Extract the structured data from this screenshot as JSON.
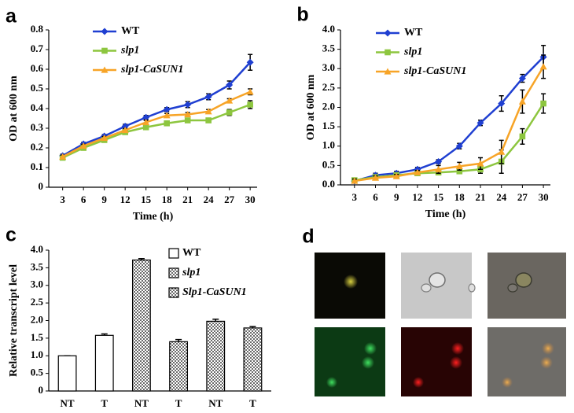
{
  "chart_data": [
    {
      "type": "line",
      "panel_label": "a",
      "x_label": "Time (h)",
      "y_label": "OD at 600 nm",
      "x": [
        3,
        6,
        9,
        12,
        15,
        18,
        21,
        24,
        27,
        30
      ],
      "xlim": [
        1,
        31
      ],
      "xticks": [
        3,
        6,
        9,
        12,
        15,
        18,
        21,
        24,
        27,
        30
      ],
      "ylim": [
        0,
        0.8
      ],
      "yticks": [
        0,
        0.1,
        0.2,
        0.3,
        0.4,
        0.5,
        0.6,
        0.7,
        0.8
      ],
      "series": [
        {
          "name": "WT",
          "color": "#1f3fd1",
          "marker": "diamond",
          "italic": false,
          "values": [
            0.16,
            0.22,
            0.26,
            0.31,
            0.355,
            0.395,
            0.42,
            0.46,
            0.52,
            0.635
          ],
          "errors": [
            0.008,
            0.008,
            0.008,
            0.01,
            0.01,
            0.01,
            0.015,
            0.015,
            0.02,
            0.04
          ]
        },
        {
          "name": "slp1",
          "color": "#8dc63f",
          "marker": "square",
          "italic": true,
          "values": [
            0.15,
            0.2,
            0.24,
            0.28,
            0.305,
            0.325,
            0.34,
            0.34,
            0.38,
            0.42
          ],
          "errors": [
            0.008,
            0.008,
            0.008,
            0.008,
            0.01,
            0.01,
            0.01,
            0.01,
            0.015,
            0.02
          ]
        },
        {
          "name": "slp1-CaSUN1",
          "color": "#f7a427",
          "marker": "triangle",
          "italic": true,
          "values": [
            0.155,
            0.21,
            0.25,
            0.29,
            0.33,
            0.365,
            0.37,
            0.385,
            0.44,
            0.485
          ],
          "errors": [
            0.008,
            0.008,
            0.008,
            0.008,
            0.01,
            0.01,
            0.01,
            0.01,
            0.01,
            0.015
          ]
        }
      ]
    },
    {
      "type": "line",
      "panel_label": "b",
      "x_label": "Time (h)",
      "y_label": "OD at 600 nm",
      "x": [
        3,
        6,
        9,
        12,
        15,
        18,
        21,
        24,
        27,
        30
      ],
      "xlim": [
        1,
        31
      ],
      "xticks": [
        3,
        6,
        9,
        12,
        15,
        18,
        21,
        24,
        27,
        30
      ],
      "ylim": [
        0,
        4
      ],
      "yticks": [
        {
          "value": 0,
          "label": "0.0"
        },
        0.5,
        {
          "value": 1,
          "label": "1.0"
        },
        1.5,
        {
          "value": 2,
          "label": "2.0"
        },
        2.5,
        {
          "value": 3,
          "label": "3.0"
        },
        3.5,
        {
          "value": 4,
          "label": "4.0"
        }
      ],
      "series": [
        {
          "name": "WT",
          "color": "#1f3fd1",
          "marker": "diamond",
          "italic": false,
          "values": [
            0.1,
            0.25,
            0.3,
            0.4,
            0.6,
            1.0,
            1.6,
            2.1,
            2.75,
            3.3
          ],
          "errors": [
            0.05,
            0.05,
            0.05,
            0.05,
            0.05,
            0.07,
            0.07,
            0.2,
            0.1,
            0.3
          ]
        },
        {
          "name": "slp1",
          "color": "#8dc63f",
          "marker": "square",
          "italic": true,
          "values": [
            0.12,
            0.2,
            0.25,
            0.3,
            0.32,
            0.35,
            0.4,
            0.6,
            1.25,
            2.1
          ],
          "errors": [
            0.05,
            0.05,
            0.05,
            0.05,
            0.05,
            0.05,
            0.1,
            0.3,
            0.2,
            0.25
          ]
        },
        {
          "name": "slp1-CaSUN1",
          "color": "#f7a427",
          "marker": "triangle",
          "italic": true,
          "values": [
            0.1,
            0.18,
            0.22,
            0.32,
            0.4,
            0.48,
            0.55,
            0.85,
            2.15,
            3.05
          ],
          "errors": [
            0.05,
            0.05,
            0.05,
            0.05,
            0.1,
            0.1,
            0.15,
            0.3,
            0.3,
            0.3
          ]
        }
      ]
    },
    {
      "type": "bar",
      "panel_label": "c",
      "y_label": "Relative transcript level",
      "categories": [
        "NT",
        "T",
        "NT",
        "T",
        "NT",
        "T"
      ],
      "ylim": [
        0,
        4
      ],
      "yticks": [
        0,
        0.5,
        {
          "value": 1,
          "label": "1.0"
        },
        1.5,
        {
          "value": 2,
          "label": "2.0"
        },
        2.5,
        {
          "value": 3,
          "label": "3.0"
        },
        3.5,
        {
          "value": 4,
          "label": "4.0"
        }
      ],
      "series": [
        {
          "name": "WT",
          "color": "#000000",
          "hatch": "none",
          "italic": false,
          "values": [
            1.0,
            1.58,
            null,
            null,
            null,
            null
          ],
          "errors": [
            0,
            0.04,
            null,
            null,
            null,
            null
          ]
        },
        {
          "name": "slp1",
          "color": "#000000",
          "hatch": "dots",
          "italic": true,
          "values": [
            null,
            null,
            3.72,
            1.4,
            null,
            null
          ],
          "errors": [
            null,
            null,
            0.04,
            0.06,
            null,
            null
          ]
        },
        {
          "name": "Slp1-CaSUN1",
          "color": "#000000",
          "hatch": "dots",
          "italic": true,
          "values": [
            null,
            null,
            null,
            null,
            1.98,
            1.79
          ],
          "errors": [
            null,
            null,
            null,
            null,
            0.06,
            0.04
          ]
        }
      ]
    },
    {
      "type": "image",
      "panel_label": "d"
    }
  ]
}
